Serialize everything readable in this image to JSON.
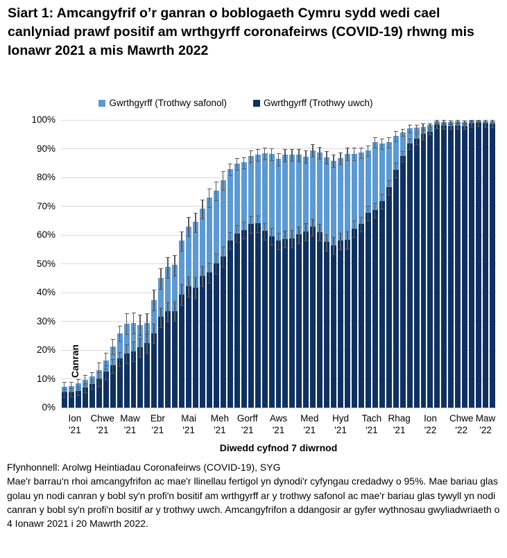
{
  "title": "Siart 1: Amcangyfrif o’r ganran o boblogaeth Cymru sydd wedi cael canlyniad prawf positif am wrthgyrff coronafeirws (COVID-19) rhwng mis Ionawr 2021 a mis Mawrth 2022",
  "legend": [
    {
      "label": "Gwrthgyrff (Trothwy safonol)",
      "color": "#5B9AD4"
    },
    {
      "label": "Gwrthgyrff (Trothwy uwch)",
      "color": "#0E3161"
    }
  ],
  "colors": {
    "standard_threshold": "#5B9AD4",
    "higher_threshold": "#0E3161",
    "error_bar": "#595959",
    "gridline": "#D9D9D9"
  },
  "footer": {
    "source": "Ffynhonnell: Arolwg Heintiadau Coronafeirws (COVID-19), SYG",
    "note": "Mae'r barrau'n rhoi amcangyfrifon ac mae'r llinellau fertigol yn dynodi'r cyfyngau credadwy o 95%. Mae bariau glas golau yn nodi canran y bobl sy'n profi'n bositif am wrthgyrff ar y trothwy safonol ac mae'r bariau glas tywyll yn nodi canran y bobl sy'n profi'n bositif ar y trothwy uwch. Amcangyfrifon a ddangosir ar gyfer wythnosau gwyliadwriaeth o 4 Ionawr 2021 i 20 Mawrth 2022."
  },
  "chart_data": {
    "type": "bar",
    "stacked": true,
    "title": "",
    "xlabel": "Diwedd cyfnod 7 diwrnod",
    "ylabel": "Canran",
    "ylim": [
      0,
      100
    ],
    "grid": true,
    "yticks": [
      0,
      10,
      20,
      30,
      40,
      50,
      60,
      70,
      80,
      90,
      100
    ],
    "ytick_labels": [
      "0%",
      "10%",
      "20%",
      "30%",
      "40%",
      "50%",
      "60%",
      "70%",
      "80%",
      "90%",
      "100%"
    ],
    "error_bars": "cyfyngau credadwy o 95%",
    "weeks_range": "4 Ionawr 2021 - 20 Mawrth 2022",
    "n_weeks": 63,
    "month_labels": [
      {
        "m": "Ion",
        "yr": "'21",
        "week": 2.5
      },
      {
        "m": "Chwe",
        "yr": "'21",
        "week": 6.5
      },
      {
        "m": "Maw",
        "yr": "'21",
        "week": 10.5
      },
      {
        "m": "Ebr",
        "yr": "'21",
        "week": 14.5
      },
      {
        "m": "Mai",
        "yr": "'21",
        "week": 19
      },
      {
        "m": "Meh",
        "yr": "'21",
        "week": 23.5
      },
      {
        "m": "Gorff",
        "yr": "'21",
        "week": 27.5
      },
      {
        "m": "Aws",
        "yr": "'21",
        "week": 32
      },
      {
        "m": "Med",
        "yr": "'21",
        "week": 36.5
      },
      {
        "m": "Hyd",
        "yr": "'21",
        "week": 41
      },
      {
        "m": "Tach",
        "yr": "'21",
        "week": 45.5
      },
      {
        "m": "Rhag",
        "yr": "'21",
        "week": 49.5
      },
      {
        "m": "Ion",
        "yr": "'22",
        "week": 54
      },
      {
        "m": "Chwe",
        "yr": "'22",
        "week": 58.5
      },
      {
        "m": "Maw",
        "yr": "'22",
        "week": 62
      }
    ],
    "series": [
      {
        "name": "Gwrthgyrff (Trothwy uwch)",
        "role": "higher_threshold",
        "values": [
          5.2,
          5.4,
          5.9,
          7.0,
          8.2,
          10.0,
          12.5,
          14.6,
          17.0,
          18.8,
          19.6,
          21.0,
          22.4,
          25.9,
          31.5,
          33.4,
          33.6,
          39.4,
          42.2,
          41.8,
          45.7,
          46.9,
          50.1,
          52.5,
          58.1,
          60.6,
          61.8,
          63.8,
          64.0,
          61.4,
          59.6,
          58.0,
          58.6,
          58.8,
          60.2,
          61.2,
          62.8,
          61.0,
          57.5,
          56.5,
          58.0,
          58.3,
          62.2,
          63.8,
          67.8,
          68.6,
          71.8,
          76.6,
          82.7,
          87.5,
          91.9,
          93.5,
          95.1,
          96.0,
          98.2,
          98.0,
          97.9,
          98.1,
          97.9,
          98.7,
          99.0,
          98.7,
          98.5
        ],
        "ci_half_width": [
          1.4,
          1.4,
          1.4,
          1.4,
          1.4,
          2.3,
          2.3,
          2.3,
          2.3,
          3.2,
          3.2,
          3.2,
          3.2,
          3.2,
          3.2,
          3.2,
          3.2,
          3.4,
          3.4,
          3.4,
          3.4,
          3.4,
          3.4,
          3.4,
          2.8,
          2.8,
          2.8,
          2.8,
          2.8,
          2.8,
          2.8,
          2.8,
          2.8,
          2.8,
          2.8,
          2.8,
          2.8,
          2.8,
          2.8,
          2.8,
          2.8,
          2.8,
          2.8,
          2.4,
          2.4,
          2.4,
          2.4,
          2.4,
          2.4,
          1.7,
          1.7,
          1.7,
          1.7,
          0.9,
          0.9,
          0.9,
          0.9,
          0.9,
          0.9,
          0.9,
          0.9,
          0.9,
          0.9
        ]
      },
      {
        "name": "Gwrthgyrff (Trothwy safonol)",
        "role": "standard_threshold_total",
        "values": [
          7.3,
          7.4,
          8.4,
          9.7,
          10.8,
          13.0,
          16.4,
          21.3,
          25.9,
          29.2,
          29.5,
          28.7,
          29.3,
          37.4,
          45.0,
          48.8,
          49.6,
          58.0,
          63.0,
          64.5,
          69.2,
          73.0,
          75.4,
          79.0,
          82.9,
          84.9,
          85.2,
          87.4,
          87.9,
          88.4,
          88.2,
          86.4,
          87.9,
          88.0,
          87.9,
          87.3,
          89.5,
          88.7,
          87.1,
          85.9,
          86.7,
          88.3,
          88.3,
          88.7,
          89.5,
          92.3,
          91.9,
          92.3,
          94.5,
          95.7,
          97.1,
          97.3,
          97.7,
          98.2,
          99.5,
          99.4,
          99.3,
          99.5,
          99.3,
          99.7,
          99.8,
          99.6,
          99.5
        ],
        "ci_half_width": [
          1.6,
          1.6,
          1.6,
          1.6,
          1.6,
          2.6,
          2.6,
          2.6,
          2.6,
          3.5,
          3.5,
          3.5,
          3.5,
          3.5,
          3.5,
          3.5,
          3.5,
          3.2,
          3.2,
          3.2,
          3.2,
          3.2,
          3.2,
          3.2,
          1.9,
          1.9,
          1.9,
          1.9,
          1.9,
          1.9,
          1.9,
          2.0,
          2.0,
          2.0,
          2.0,
          2.0,
          2.0,
          2.0,
          2.0,
          2.0,
          2.0,
          2.0,
          2.0,
          1.7,
          1.7,
          1.7,
          1.7,
          1.7,
          1.7,
          1.1,
          1.1,
          1.1,
          1.1,
          0.6,
          0.6,
          0.6,
          0.4,
          0.4,
          0.4,
          0.4,
          0.4,
          0.4,
          0.4
        ]
      }
    ]
  }
}
